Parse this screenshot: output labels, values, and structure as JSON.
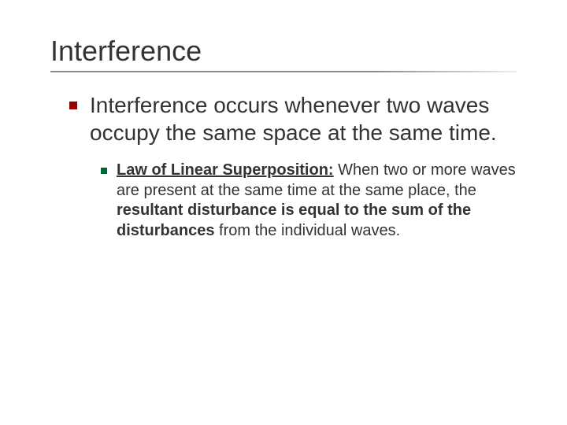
{
  "colors": {
    "background": "#ffffff",
    "title_text": "#333333",
    "body_text": "#333333",
    "underline": "#8a8f8c",
    "bullet_l1": "#990000",
    "bullet_l2": "#006633"
  },
  "fonts": {
    "family": "Verdana",
    "title_size_pt": 36,
    "l1_size_pt": 28,
    "l2_size_pt": 20
  },
  "title": "Interference",
  "body": {
    "l1": {
      "text": "Interference occurs whenever two waves occupy the same space at the same time."
    },
    "l2": {
      "seg_a_bold_underline": "Law of Linear Superposition:",
      "seg_b": " When two or more waves are present at the same time at the same place, the ",
      "seg_c_bold": "resultant disturbance is equal to the sum of the disturbances",
      "seg_d": " from the individual waves."
    }
  }
}
